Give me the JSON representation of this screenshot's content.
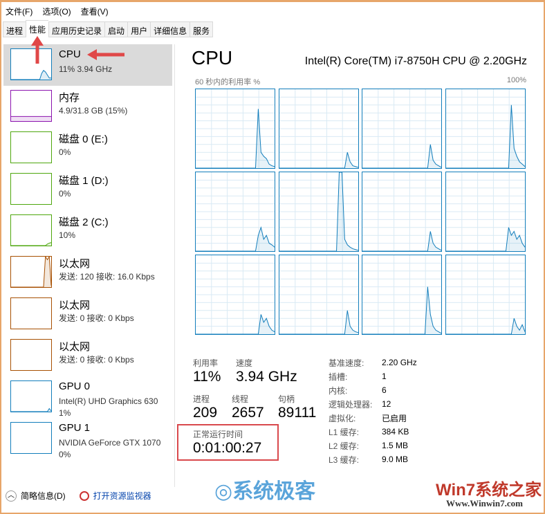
{
  "menu": [
    "文件(F)",
    "选项(O)",
    "查看(V)"
  ],
  "tabs": [
    "进程",
    "性能",
    "应用历史记录",
    "启动",
    "用户",
    "详细信息",
    "服务"
  ],
  "active_tab": "性能",
  "sidebar": [
    {
      "name": "CPU",
      "sub": "11%  3.94 GHz",
      "color": "#117dbb",
      "sel": true,
      "values": [
        0,
        0,
        0,
        0,
        0,
        0,
        0,
        0,
        0,
        0,
        0,
        0,
        0,
        0,
        0,
        0,
        20,
        30,
        25,
        15,
        5,
        5
      ]
    },
    {
      "name": "内存",
      "sub": "4.9/31.8 GB (15%)",
      "color": "#8b12ae",
      "values": [
        15,
        15,
        15,
        15,
        15,
        15,
        15,
        15,
        15,
        15,
        15,
        15,
        15,
        15,
        15,
        15,
        15,
        15,
        15,
        15,
        15,
        15
      ]
    },
    {
      "name": "磁盘 0 (E:)",
      "sub": "0%",
      "color": "#4da60c",
      "values": [
        0
      ]
    },
    {
      "name": "磁盘 1 (D:)",
      "sub": "0%",
      "color": "#4da60c",
      "values": [
        0
      ]
    },
    {
      "name": "磁盘 2 (C:)",
      "sub": "10%",
      "color": "#4da60c",
      "values": [
        0,
        0,
        0,
        0,
        0,
        0,
        0,
        0,
        0,
        0,
        0,
        0,
        0,
        0,
        0,
        0,
        0,
        0,
        0,
        5,
        8,
        10
      ]
    },
    {
      "name": "以太网",
      "sub": "发送: 120 接收: 16.0 Kbps",
      "color": "#a74f01",
      "values": [
        0,
        0,
        0,
        0,
        0,
        0,
        0,
        0,
        0,
        0,
        0,
        0,
        0,
        0,
        0,
        0,
        0,
        0,
        100,
        90,
        100,
        5
      ]
    },
    {
      "name": "以太网",
      "sub": "发送: 0 接收: 0 Kbps",
      "color": "#a74f01",
      "values": [
        0
      ]
    },
    {
      "name": "以太网",
      "sub": "发送: 0 接收: 0 Kbps",
      "color": "#a74f01",
      "values": [
        0
      ]
    },
    {
      "name": "GPU 0",
      "sub": "Intel(R) UHD Graphics 630\n1%",
      "color": "#117dbb",
      "values": [
        0,
        0,
        0,
        0,
        0,
        0,
        0,
        0,
        0,
        0,
        0,
        0,
        0,
        0,
        0,
        0,
        0,
        0,
        0,
        0,
        10,
        2
      ]
    },
    {
      "name": "GPU 1",
      "sub": "NVIDIA GeForce GTX 1070\n0%",
      "color": "#117dbb",
      "values": [
        0
      ]
    }
  ],
  "main": {
    "title": "CPU",
    "model": "Intel(R) Core(TM) i7-8750H CPU @ 2.20GHz",
    "graph_label": "60 秒内的利用率 %",
    "graph_max": "100%",
    "stats": {
      "util_label": "利用率",
      "util": "11%",
      "speed_label": "速度",
      "speed": "3.94 GHz",
      "proc_label": "进程",
      "proc": "209",
      "thread_label": "线程",
      "thread": "2657",
      "handle_label": "句柄",
      "handle": "89111",
      "uptime_label": "正常运行时间",
      "uptime": "0:01:00:27"
    },
    "info": [
      [
        "基准速度:",
        "2.20 GHz"
      ],
      [
        "插槽:",
        "1"
      ],
      [
        "内核:",
        "6"
      ],
      [
        "逻辑处理器:",
        "12"
      ],
      [
        "虚拟化:",
        "已启用"
      ],
      [
        "L1 缓存:",
        "384 KB"
      ],
      [
        "L2 缓存:",
        "1.5 MB"
      ],
      [
        "L3 缓存:",
        "9.0 MB"
      ]
    ]
  },
  "chart_data": {
    "type": "line",
    "ylim": [
      0,
      100
    ],
    "series": [
      {
        "values": [
          0,
          0,
          0,
          0,
          0,
          0,
          0,
          0,
          0,
          0,
          0,
          0,
          0,
          0,
          0,
          0,
          0,
          0,
          0,
          0,
          0,
          0,
          0,
          75,
          20,
          15,
          12,
          5,
          3,
          2
        ]
      },
      {
        "values": [
          0,
          0,
          0,
          0,
          0,
          0,
          0,
          0,
          0,
          0,
          0,
          0,
          0,
          0,
          0,
          0,
          0,
          0,
          0,
          0,
          0,
          0,
          0,
          0,
          0,
          20,
          8,
          3,
          2,
          1
        ]
      },
      {
        "values": [
          0,
          0,
          0,
          0,
          0,
          0,
          0,
          0,
          0,
          0,
          0,
          0,
          0,
          0,
          0,
          0,
          0,
          0,
          0,
          0,
          0,
          0,
          0,
          0,
          0,
          30,
          10,
          5,
          3,
          1
        ]
      },
      {
        "values": [
          0,
          0,
          0,
          0,
          0,
          0,
          0,
          0,
          0,
          0,
          0,
          0,
          0,
          0,
          0,
          0,
          0,
          0,
          0,
          0,
          0,
          0,
          0,
          0,
          80,
          25,
          15,
          8,
          5,
          2
        ]
      },
      {
        "values": [
          0,
          0,
          0,
          0,
          0,
          0,
          0,
          0,
          0,
          0,
          0,
          0,
          0,
          0,
          0,
          0,
          0,
          0,
          0,
          0,
          0,
          0,
          0,
          20,
          30,
          15,
          20,
          10,
          8,
          5
        ]
      },
      {
        "values": [
          0,
          0,
          0,
          0,
          0,
          0,
          0,
          0,
          0,
          0,
          0,
          0,
          0,
          0,
          0,
          0,
          0,
          0,
          0,
          0,
          0,
          0,
          100,
          100,
          15,
          8,
          5,
          3,
          2,
          1
        ]
      },
      {
        "values": [
          0,
          0,
          0,
          0,
          0,
          0,
          0,
          0,
          0,
          0,
          0,
          0,
          0,
          0,
          0,
          0,
          0,
          0,
          0,
          0,
          0,
          0,
          0,
          0,
          0,
          25,
          10,
          5,
          3,
          1
        ]
      },
      {
        "values": [
          0,
          0,
          0,
          0,
          0,
          0,
          0,
          0,
          0,
          0,
          0,
          0,
          0,
          0,
          0,
          0,
          0,
          0,
          0,
          0,
          0,
          0,
          0,
          30,
          20,
          25,
          15,
          20,
          10,
          5
        ]
      },
      {
        "values": [
          0,
          0,
          0,
          0,
          0,
          0,
          0,
          0,
          0,
          0,
          0,
          0,
          0,
          0,
          0,
          0,
          0,
          0,
          0,
          0,
          0,
          0,
          0,
          0,
          25,
          15,
          20,
          10,
          5,
          3
        ]
      },
      {
        "values": [
          0,
          0,
          0,
          0,
          0,
          0,
          0,
          0,
          0,
          0,
          0,
          0,
          0,
          0,
          0,
          0,
          0,
          0,
          0,
          0,
          0,
          0,
          0,
          0,
          0,
          30,
          10,
          5,
          3,
          2
        ]
      },
      {
        "values": [
          0,
          0,
          0,
          0,
          0,
          0,
          0,
          0,
          0,
          0,
          0,
          0,
          0,
          0,
          0,
          0,
          0,
          0,
          0,
          0,
          0,
          0,
          0,
          0,
          60,
          25,
          10,
          5,
          3,
          1
        ]
      },
      {
        "values": [
          0,
          0,
          0,
          0,
          0,
          0,
          0,
          0,
          0,
          0,
          0,
          0,
          0,
          0,
          0,
          0,
          0,
          0,
          0,
          0,
          0,
          0,
          0,
          0,
          0,
          20,
          10,
          5,
          12,
          3
        ]
      }
    ]
  },
  "footer": {
    "brief": "简略信息(D)",
    "monitor": "打开资源监视器"
  },
  "watermarks": [
    "系统极客",
    "Win7系统之家",
    "Www.Winwin7.com"
  ]
}
